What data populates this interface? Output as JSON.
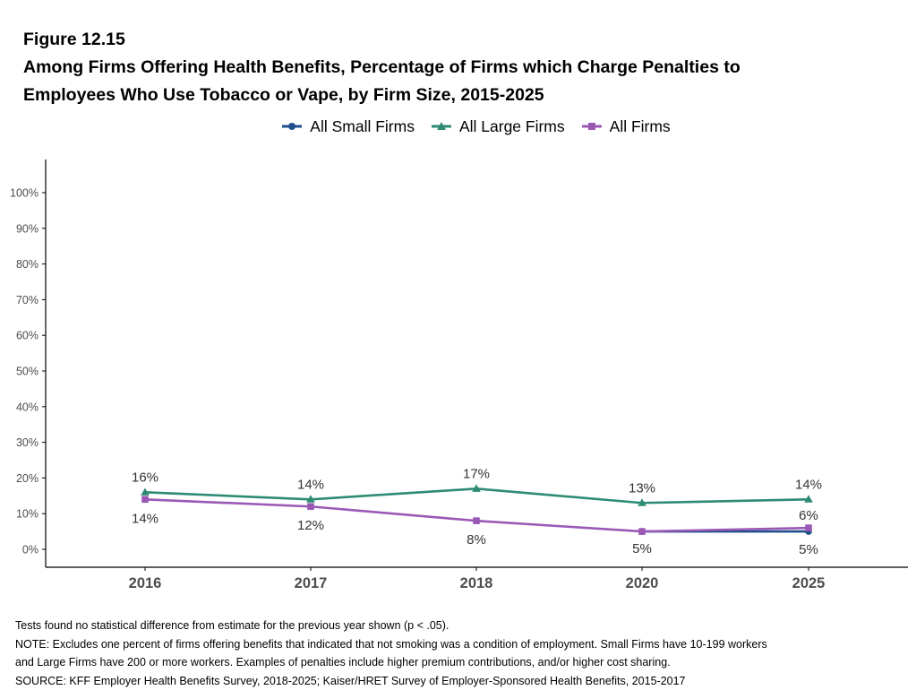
{
  "figure": {
    "label": "Figure 12.15",
    "title_line1": "Among Firms Offering Health Benefits, Percentage of Firms which Charge Penalties to",
    "title_line2": "Employees Who Use Tobacco or Vape, by Firm Size, 2015-2025"
  },
  "colors": {
    "small": "#1f4e8c",
    "large": "#2e8b74",
    "all": "#9b59b6",
    "axis": "#000000",
    "tick_text": "#4d4d4d",
    "label_text": "#333333"
  },
  "chart_data": {
    "type": "line",
    "categories": [
      "2016",
      "2017",
      "2018",
      "2020",
      "2025"
    ],
    "ylim": [
      0,
      100
    ],
    "yticks": [
      "0%",
      "10%",
      "20%",
      "30%",
      "40%",
      "50%",
      "60%",
      "70%",
      "80%",
      "90%",
      "100%"
    ],
    "grid": false,
    "legend_position": "top",
    "series": [
      {
        "name": "All Small Firms",
        "key": "small",
        "marker": "circle",
        "values": [
          null,
          null,
          null,
          5,
          5
        ],
        "labels": [
          null,
          null,
          null,
          null,
          null
        ]
      },
      {
        "name": "All Large Firms",
        "key": "large",
        "marker": "triangle",
        "values": [
          16,
          14,
          17,
          13,
          14
        ],
        "labels": [
          "16%",
          "14%",
          "17%",
          "13%",
          "14%"
        ]
      },
      {
        "name": "All Firms",
        "key": "all",
        "marker": "square",
        "values": [
          14,
          12,
          8,
          5,
          6
        ],
        "labels": [
          "14%",
          "12%",
          "8%",
          "5%",
          "6%"
        ]
      }
    ],
    "extra_labels": [
      {
        "series": "small",
        "index": 4,
        "text": "5%"
      }
    ]
  },
  "notes": {
    "line1": "Tests found no statistical difference from estimate for the previous year shown (p < .05).",
    "line2": "NOTE: Excludes one percent of firms offering benefits that indicated that not smoking was a condition of employment. Small Firms have 10-199 workers",
    "line3": "and Large Firms have 200 or more workers.  Examples of penalties include higher premium contributions, and/or higher cost sharing.",
    "line4": "SOURCE: KFF Employer Health Benefits Survey, 2018-2025; Kaiser/HRET Survey of Employer-Sponsored Health Benefits, 2015-2017"
  }
}
